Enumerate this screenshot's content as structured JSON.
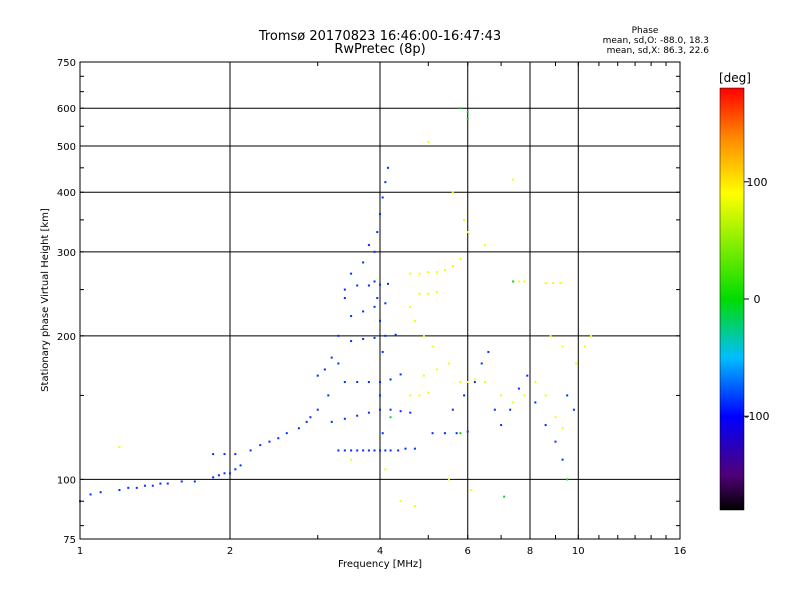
{
  "chart_data": {
    "type": "scatter",
    "title": "Tromsø 20170823 16:46:00-16:47:43",
    "subtitle": "RwPretec (8p)",
    "xlabel": "Frequency [MHz]",
    "ylabel": "Stationary phase Virtual Height [km]",
    "xscale": "log",
    "yscale": "log",
    "xlim": [
      1,
      16
    ],
    "ylim": [
      75,
      750
    ],
    "xticks": [
      {
        "value": 1,
        "label": "1"
      },
      {
        "value": 2,
        "label": "2"
      },
      {
        "value": 4,
        "label": "4"
      },
      {
        "value": 6,
        "label": "6"
      },
      {
        "value": 8,
        "label": "8"
      },
      {
        "value": 10,
        "label": "10"
      },
      {
        "value": 16,
        "label": "16"
      }
    ],
    "xgrid": [
      2,
      4,
      6,
      8,
      10
    ],
    "yticks": [
      {
        "value": 75,
        "label": "75"
      },
      {
        "value": 100,
        "label": "100"
      },
      {
        "value": 200,
        "label": "200"
      },
      {
        "value": 300,
        "label": "300"
      },
      {
        "value": 400,
        "label": "400"
      },
      {
        "value": 500,
        "label": "500"
      },
      {
        "value": 600,
        "label": "600"
      },
      {
        "value": 750,
        "label": "750"
      }
    ],
    "ygrid": [
      100,
      200,
      300,
      400,
      500,
      600
    ],
    "grid": true,
    "stats": {
      "heading": "Phase",
      "line1": "mean, sd,O: -88.0, 18.3",
      "line2": "mean, sd,X:  86.3, 22.6"
    },
    "colorbar": {
      "unit": "[deg]",
      "range": [
        -180,
        180
      ],
      "ticks": [
        {
          "value": 100,
          "label": "100"
        },
        {
          "value": 0,
          "label": "0"
        },
        {
          "value": -100,
          "label": "-100"
        }
      ]
    },
    "series": [
      {
        "mode": "O",
        "phase": -88.0,
        "points": [
          [
            1.0,
            90
          ],
          [
            1.05,
            93
          ],
          [
            1.1,
            94
          ],
          [
            1.2,
            95
          ],
          [
            1.25,
            96
          ],
          [
            1.3,
            96
          ],
          [
            1.35,
            97
          ],
          [
            1.4,
            97
          ],
          [
            1.45,
            98
          ],
          [
            1.5,
            98
          ],
          [
            1.6,
            99
          ],
          [
            1.7,
            99
          ],
          [
            1.85,
            101
          ],
          [
            1.9,
            102
          ],
          [
            1.95,
            103
          ],
          [
            2.0,
            103
          ],
          [
            2.05,
            105
          ],
          [
            2.1,
            107
          ],
          [
            1.85,
            113
          ],
          [
            1.95,
            113
          ],
          [
            2.05,
            113
          ],
          [
            2.2,
            115
          ],
          [
            2.3,
            118
          ],
          [
            2.4,
            120
          ],
          [
            2.5,
            122
          ],
          [
            2.6,
            125
          ],
          [
            2.75,
            128
          ],
          [
            2.85,
            132
          ],
          [
            2.9,
            135
          ],
          [
            3.3,
            115
          ],
          [
            3.4,
            115
          ],
          [
            3.5,
            115
          ],
          [
            3.6,
            115
          ],
          [
            3.7,
            115
          ],
          [
            3.8,
            115
          ],
          [
            3.9,
            115
          ],
          [
            4.0,
            115
          ],
          [
            4.1,
            115
          ],
          [
            4.2,
            115
          ],
          [
            4.35,
            115
          ],
          [
            4.5,
            116
          ],
          [
            4.7,
            116
          ],
          [
            3.2,
            132
          ],
          [
            3.4,
            134
          ],
          [
            3.6,
            136
          ],
          [
            3.8,
            138
          ],
          [
            4.0,
            140
          ],
          [
            4.2,
            140
          ],
          [
            4.4,
            139
          ],
          [
            4.6,
            138
          ],
          [
            3.4,
            160
          ],
          [
            3.6,
            160
          ],
          [
            3.8,
            160
          ],
          [
            4.0,
            160
          ],
          [
            4.2,
            162
          ],
          [
            4.4,
            166
          ],
          [
            3.5,
            195
          ],
          [
            3.7,
            197
          ],
          [
            3.9,
            198
          ],
          [
            4.1,
            200
          ],
          [
            4.3,
            201
          ],
          [
            3.5,
            220
          ],
          [
            3.7,
            225
          ],
          [
            3.9,
            230
          ],
          [
            4.1,
            234
          ],
          [
            3.4,
            250
          ],
          [
            3.6,
            255
          ],
          [
            3.8,
            255
          ],
          [
            4.0,
            256
          ],
          [
            4.15,
            257
          ],
          [
            3.9,
            300
          ],
          [
            3.95,
            330
          ],
          [
            4.0,
            360
          ],
          [
            4.05,
            390
          ],
          [
            4.1,
            420
          ],
          [
            4.15,
            450
          ],
          [
            3.9,
            260
          ],
          [
            3.95,
            240
          ],
          [
            4.0,
            215
          ],
          [
            4.05,
            185
          ],
          [
            4.0,
            150
          ],
          [
            4.05,
            125
          ],
          [
            3.3,
            175
          ],
          [
            3.3,
            200
          ],
          [
            3.4,
            240
          ],
          [
            3.5,
            270
          ],
          [
            3.7,
            285
          ],
          [
            3.8,
            310
          ],
          [
            3.0,
            165
          ],
          [
            3.1,
            170
          ],
          [
            3.2,
            180
          ],
          [
            3.15,
            150
          ],
          [
            3.0,
            140
          ],
          [
            5.1,
            125
          ],
          [
            5.4,
            125
          ],
          [
            5.7,
            125
          ],
          [
            6.0,
            126
          ],
          [
            5.6,
            140
          ],
          [
            5.9,
            150
          ],
          [
            6.2,
            160
          ],
          [
            6.4,
            175
          ],
          [
            6.6,
            185
          ],
          [
            6.8,
            140
          ],
          [
            7.0,
            130
          ],
          [
            7.3,
            140
          ],
          [
            7.6,
            155
          ],
          [
            7.9,
            165
          ],
          [
            8.2,
            145
          ],
          [
            8.6,
            130
          ],
          [
            9.0,
            120
          ],
          [
            9.3,
            110
          ],
          [
            9.5,
            150
          ],
          [
            9.8,
            140
          ]
        ]
      },
      {
        "mode": "X",
        "phase": 86.3,
        "points": [
          [
            4.6,
            270
          ],
          [
            4.8,
            270
          ],
          [
            5.0,
            272
          ],
          [
            5.2,
            272
          ],
          [
            5.4,
            275
          ],
          [
            5.6,
            280
          ],
          [
            5.8,
            290
          ],
          [
            4.8,
            245
          ],
          [
            5.0,
            245
          ],
          [
            5.2,
            247
          ],
          [
            4.6,
            230
          ],
          [
            4.7,
            215
          ],
          [
            4.9,
            200
          ],
          [
            5.1,
            190
          ],
          [
            4.9,
            165
          ],
          [
            5.2,
            170
          ],
          [
            5.5,
            175
          ],
          [
            5.8,
            160
          ],
          [
            6.0,
            160
          ],
          [
            6.2,
            162
          ],
          [
            4.6,
            150
          ],
          [
            4.8,
            150
          ],
          [
            5.0,
            152
          ],
          [
            6.5,
            160
          ],
          [
            7.0,
            150
          ],
          [
            7.4,
            145
          ],
          [
            7.8,
            150
          ],
          [
            8.2,
            160
          ],
          [
            8.6,
            150
          ],
          [
            9.0,
            135
          ],
          [
            9.3,
            128
          ],
          [
            8.6,
            258
          ],
          [
            8.9,
            258
          ],
          [
            9.2,
            258
          ],
          [
            7.6,
            260
          ],
          [
            7.8,
            260
          ],
          [
            8.8,
            200
          ],
          [
            9.3,
            190
          ],
          [
            9.9,
            175
          ],
          [
            10.3,
            190
          ],
          [
            10.6,
            200
          ],
          [
            5.0,
            510
          ],
          [
            7.4,
            425
          ],
          [
            5.6,
            400
          ],
          [
            5.9,
            350
          ],
          [
            6.0,
            330
          ],
          [
            6.5,
            310
          ],
          [
            1.2,
            117
          ],
          [
            3.5,
            110
          ],
          [
            4.1,
            105
          ],
          [
            5.5,
            100
          ],
          [
            6.1,
            95
          ],
          [
            4.4,
            90
          ],
          [
            4.7,
            88
          ]
        ]
      },
      {
        "mode": "outliers",
        "phase": -5.0,
        "points": [
          [
            5.8,
            600
          ],
          [
            6.0,
            590
          ],
          [
            6.0,
            570
          ],
          [
            7.4,
            260
          ],
          [
            5.8,
            125
          ],
          [
            4.2,
            135
          ],
          [
            9.5,
            100
          ],
          [
            7.1,
            92
          ]
        ]
      }
    ]
  }
}
